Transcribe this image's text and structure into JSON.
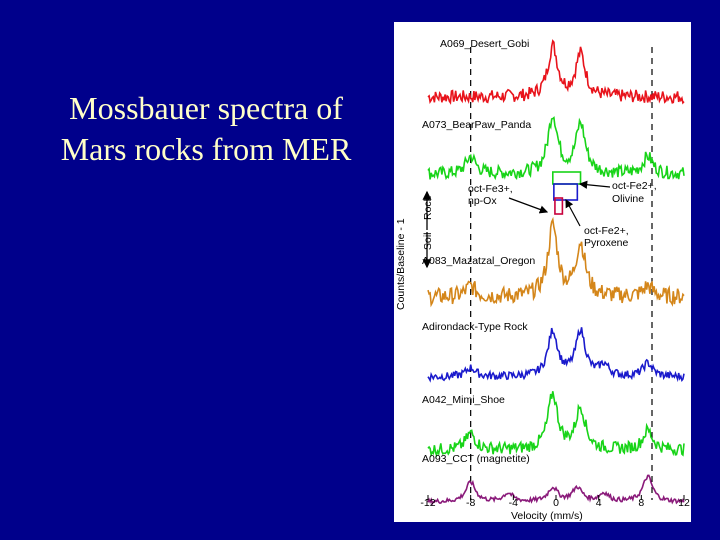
{
  "slide": {
    "title_line1": "Mossbauer spectra of",
    "title_line2": "Mars rocks from MER"
  },
  "colors": {
    "background": "#00008b",
    "title": "#ffffc8",
    "red": "#e8131b",
    "green": "#18d418",
    "orange": "#d4861a",
    "blue": "#1a1acc",
    "purple": "#8a1a7a"
  },
  "chart_data": {
    "type": "line",
    "xlabel": "Velocity  (mm/s)",
    "ylabel": "Counts/Baseline - 1",
    "xlim": [
      -12,
      12
    ],
    "x_ticks": [
      -12,
      -8,
      -4,
      0,
      4,
      8,
      12
    ],
    "x_tick_labels": [
      "-12",
      "-8",
      "-4",
      "0",
      "4",
      "8",
      "12"
    ],
    "dashed_lines_x": [
      -8,
      9
    ],
    "series": [
      {
        "name": "A069_Desert_Gobi",
        "color": "#e8131b",
        "peaks": [
          [
            -0.3,
            1.0
          ],
          [
            2.3,
            0.85
          ]
        ],
        "outer_peaks": [],
        "noise": 0.13
      },
      {
        "name": "A073_BearPaw_Panda",
        "color": "#18d418",
        "peaks": [
          [
            -0.3,
            1.0
          ],
          [
            2.3,
            0.85
          ]
        ],
        "outer_peaks": [
          [
            -8,
            0.3
          ],
          [
            8.6,
            0.3
          ]
        ],
        "noise": 0.11
      },
      {
        "name": "A083_Mazatzal_Oregon",
        "color": "#d4861a",
        "peaks": [
          [
            -0.3,
            1.0
          ],
          [
            2.3,
            0.75
          ]
        ],
        "outer_peaks": [
          [
            -8,
            0.15
          ],
          [
            8.6,
            0.15
          ]
        ],
        "noise": 0.12
      },
      {
        "name": "Adirondack-Type Rock",
        "color": "#1a1acc",
        "peaks": [
          [
            -0.3,
            1.0
          ],
          [
            2.3,
            1.0
          ]
        ],
        "outer_peaks": [
          [
            -8,
            0.2
          ],
          [
            4.5,
            0.25
          ],
          [
            8.6,
            0.3
          ]
        ],
        "noise": 0.09
      },
      {
        "name": "A042_Mimi_Shoe",
        "color": "#18d418",
        "peaks": [
          [
            -0.3,
            1.0
          ],
          [
            2.3,
            0.75
          ]
        ],
        "outer_peaks": [
          [
            -8,
            0.3
          ],
          [
            8.6,
            0.35
          ]
        ],
        "noise": 0.11
      },
      {
        "name": "A093_CCT (magnetite)",
        "color": "#8a1a7a",
        "peaks": [
          [
            -0.3,
            0.5
          ],
          [
            2.0,
            0.5
          ]
        ],
        "outer_peaks": [
          [
            -8,
            0.7
          ],
          [
            -4.5,
            0.3
          ],
          [
            4.5,
            0.3
          ],
          [
            8.6,
            0.9
          ]
        ],
        "noise": 0.08
      }
    ],
    "annotations": [
      {
        "text": "oct-Fe3+,",
        "line2": "np-Ox"
      },
      {
        "text": "oct-Fe2+,",
        "line2": "Olivine"
      },
      {
        "text": "oct-Fe2+,",
        "line2": "Pyroxene"
      }
    ],
    "arrow_labels": [
      "Rock",
      "Soil"
    ]
  }
}
